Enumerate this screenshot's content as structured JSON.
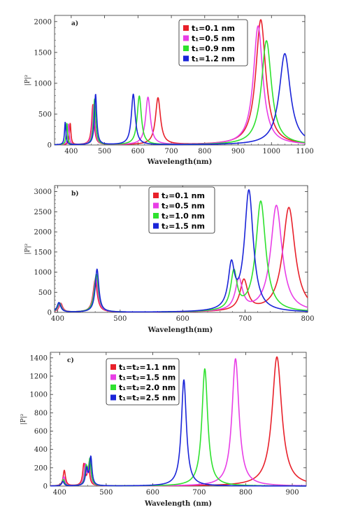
{
  "chart_data": [
    {
      "type": "line",
      "panel_label": "a)",
      "xlabel": "Wavelength(nm)",
      "ylabel": "|P|²",
      "xlim": [
        350,
        1100
      ],
      "ylim": [
        0,
        2100
      ],
      "xticks": [
        400,
        500,
        600,
        700,
        800,
        900,
        1000,
        1100
      ],
      "yticks": [
        0,
        500,
        1000,
        1500,
        2000
      ],
      "legend_position": "top-right",
      "series": [
        {
          "name": "t₁=0.1 nm",
          "color": "#e8202a",
          "peaks": [
            [
              397,
              350,
              5
            ],
            [
              465,
              650,
              9
            ],
            [
              660,
              760,
              18
            ],
            [
              968,
              2030,
              36
            ]
          ]
        },
        {
          "name": "t₁=0.5 nm",
          "color": "#e83ee6",
          "peaks": [
            [
              392,
              340,
              5
            ],
            [
              467,
              640,
              9
            ],
            [
              630,
              770,
              17
            ],
            [
              960,
              1930,
              34
            ]
          ]
        },
        {
          "name": "t₁=0.9 nm",
          "color": "#2ee12e",
          "peaks": [
            [
              387,
              350,
              5
            ],
            [
              470,
              740,
              8
            ],
            [
              604,
              790,
              15
            ],
            [
              985,
              1690,
              36
            ]
          ]
        },
        {
          "name": "t₁=1.2 nm",
          "color": "#1a24d8",
          "peaks": [
            [
              382,
              370,
              5
            ],
            [
              473,
              820,
              8
            ],
            [
              586,
              820,
              14
            ],
            [
              1040,
              1480,
              40
            ]
          ]
        }
      ]
    },
    {
      "type": "line",
      "panel_label": "b)",
      "xlabel": "Wavelength(nm)",
      "ylabel": "|P|²",
      "xlim": [
        395,
        800
      ],
      "ylim": [
        0,
        3150
      ],
      "xticks": [
        400,
        500,
        600,
        700,
        800
      ],
      "yticks": [
        0,
        500,
        1000,
        1500,
        2000,
        2500,
        3000
      ],
      "legend_position": "top-center",
      "series": [
        {
          "name": "t₂=0.1 nm",
          "color": "#e8202a",
          "peaks": [
            [
              405,
              220,
              7
            ],
            [
              460,
              800,
              8
            ],
            [
              698,
              760,
              15
            ],
            [
              770,
              2600,
              24
            ]
          ]
        },
        {
          "name": "t₂=0.5 nm",
          "color": "#e83ee6",
          "peaks": [
            [
              404,
              220,
              7
            ],
            [
              461,
              870,
              8
            ],
            [
              690,
              780,
              14
            ],
            [
              750,
              2650,
              22
            ]
          ]
        },
        {
          "name": "t₂=1.0 nm",
          "color": "#2ee12e",
          "peaks": [
            [
              403,
              230,
              7
            ],
            [
              462,
              950,
              8
            ],
            [
              682,
              950,
              12
            ],
            [
              725,
              2750,
              19
            ]
          ]
        },
        {
          "name": "t₂=1.5 nm",
          "color": "#1a24d8",
          "peaks": [
            [
              402,
              240,
              7
            ],
            [
              463,
              1070,
              7
            ],
            [
              678,
              1050,
              12
            ],
            [
              706,
              3000,
              17
            ]
          ]
        }
      ]
    },
    {
      "type": "line",
      "panel_label": "c)",
      "xlabel": "Wavelength (nm)",
      "ylabel": "|P|²",
      "xlim": [
        380,
        930
      ],
      "ylim": [
        0,
        1460
      ],
      "xticks": [
        400,
        500,
        600,
        700,
        800,
        900
      ],
      "yticks": [
        0,
        200,
        400,
        600,
        800,
        1000,
        1200,
        1400
      ],
      "legend_position": "top-left",
      "series": [
        {
          "name": "t₁=t₂=1.1 nm",
          "color": "#e8202a",
          "peaks": [
            [
              410,
              170,
              6
            ],
            [
              452,
              230,
              6
            ],
            [
              462,
              200,
              6
            ],
            [
              867,
              1410,
              25
            ]
          ]
        },
        {
          "name": "t₁=t₂=1.5 nm",
          "color": "#e83ee6",
          "peaks": [
            [
              409,
              100,
              6
            ],
            [
              455,
              220,
              6
            ],
            [
              464,
              250,
              6
            ],
            [
              778,
              1390,
              18
            ]
          ]
        },
        {
          "name": "t₁=t₂=2.0 nm",
          "color": "#2ee12e",
          "peaks": [
            [
              408,
              70,
              6
            ],
            [
              457,
              200,
              6
            ],
            [
              465,
              280,
              6
            ],
            [
              712,
              1280,
              15
            ]
          ]
        },
        {
          "name": "t₁=t₂=2.5 nm",
          "color": "#1a24d8",
          "peaks": [
            [
              407,
              50,
              6
            ],
            [
              458,
              180,
              6
            ],
            [
              467,
              310,
              6
            ],
            [
              667,
              1160,
              13
            ]
          ]
        }
      ]
    }
  ]
}
